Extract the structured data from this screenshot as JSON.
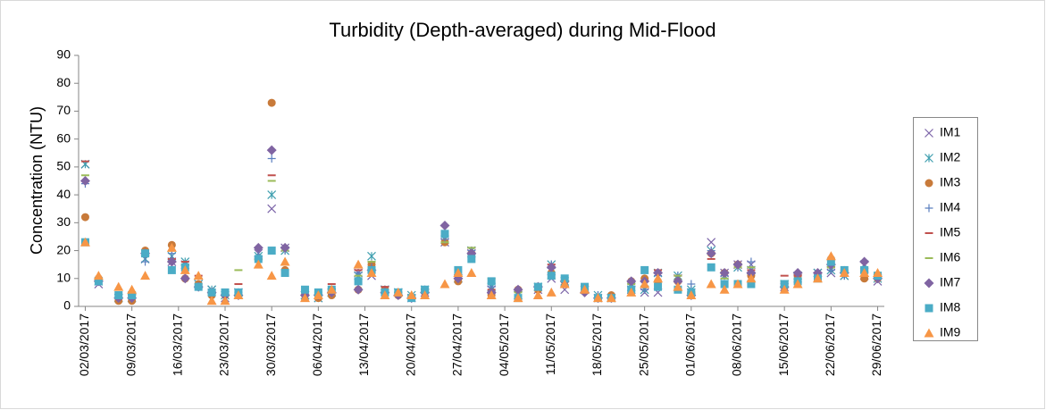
{
  "chart_data": {
    "type": "scatter",
    "title": "Turbidity (Depth-averaged) during Mid-Flood",
    "y_label": "Concentration (NTU)",
    "x": [
      "02/03/2017",
      "04/03/2017",
      "07/03/2017",
      "09/03/2017",
      "11/03/2017",
      "15/03/2017",
      "17/03/2017",
      "19/03/2017",
      "21/03/2017",
      "23/03/2017",
      "25/03/2017",
      "28/03/2017",
      "30/03/2017",
      "01/04/2017",
      "04/04/2017",
      "06/04/2017",
      "08/04/2017",
      "12/04/2017",
      "14/04/2017",
      "16/04/2017",
      "18/04/2017",
      "20/04/2017",
      "22/04/2017",
      "25/04/2017",
      "27/04/2017",
      "29/04/2017",
      "02/05/2017",
      "06/05/2017",
      "09/05/2017",
      "11/05/2017",
      "13/05/2017",
      "16/05/2017",
      "18/05/2017",
      "20/05/2017",
      "23/05/2017",
      "25/05/2017",
      "27/05/2017",
      "30/05/2017",
      "01/06/2017",
      "04/06/2017",
      "06/06/2017",
      "08/06/2017",
      "10/06/2017",
      "15/06/2017",
      "17/06/2017",
      "20/06/2017",
      "22/06/2017",
      "24/06/2017",
      "27/06/2017",
      "29/06/2017"
    ],
    "xlim": [
      "01/03/2017",
      "30/06/2017"
    ],
    "xticks": [
      "02/03/2017",
      "09/03/2017",
      "16/03/2017",
      "23/03/2017",
      "30/03/2017",
      "06/04/2017",
      "13/04/2017",
      "20/04/2017",
      "27/04/2017",
      "04/05/2017",
      "11/05/2017",
      "18/05/2017",
      "25/05/2017",
      "01/06/2017",
      "08/06/2017",
      "15/06/2017",
      "22/06/2017",
      "29/06/2017"
    ],
    "ylim": [
      0,
      90
    ],
    "yticks": [
      0,
      10,
      20,
      30,
      40,
      50,
      60,
      70,
      80,
      90
    ],
    "legend": "right",
    "series": [
      {
        "name": "IM1",
        "color": "#7b64a8",
        "marker": "x",
        "values": [
          51,
          8,
          3,
          3,
          17,
          16,
          15,
          8,
          6,
          3,
          5,
          19,
          35,
          21,
          4,
          3,
          5,
          12,
          11,
          6,
          5,
          3,
          5,
          23,
          10,
          19,
          6,
          4,
          6,
          10,
          6,
          6,
          3,
          3,
          6,
          5,
          5,
          10,
          5,
          23,
          12,
          15,
          15,
          7,
          10,
          12,
          12,
          11,
          11,
          9
        ]
      },
      {
        "name": "IM2",
        "color": "#3f9faf",
        "marker": "asterisk",
        "values": [
          51,
          9,
          3,
          3,
          17,
          18,
          16,
          8,
          6,
          4,
          5,
          18,
          40,
          20,
          4,
          3,
          5,
          11,
          18,
          6,
          5,
          4,
          6,
          24,
          10,
          20,
          7,
          4,
          7,
          15,
          9,
          6,
          4,
          3,
          7,
          6,
          12,
          11,
          6,
          20,
          11,
          14,
          13,
          8,
          11,
          12,
          13,
          11,
          15,
          10
        ]
      },
      {
        "name": "IM3",
        "color": "#c87a3a",
        "marker": "circle",
        "values": [
          32,
          10,
          2,
          2,
          20,
          22,
          10,
          8,
          4,
          4,
          4,
          17,
          73,
          13,
          4,
          3,
          4,
          6,
          15,
          6,
          4,
          3,
          5,
          23,
          9,
          19,
          4,
          6,
          6,
          12,
          9,
          6,
          3,
          4,
          9,
          10,
          9,
          9,
          4,
          19,
          12,
          15,
          11,
          7,
          11,
          11,
          17,
          13,
          10,
          10
        ]
      },
      {
        "name": "IM4",
        "color": "#5b7fbf",
        "marker": "plus",
        "values": [
          44,
          9,
          3,
          3,
          16,
          19,
          15,
          7,
          5,
          4,
          5,
          18,
          53,
          20,
          4,
          4,
          5,
          12,
          14,
          6,
          5,
          3,
          6,
          24,
          10,
          20,
          7,
          4,
          7,
          15,
          9,
          6,
          4,
          3,
          7,
          6,
          11,
          11,
          8,
          20,
          11,
          14,
          16,
          8,
          11,
          12,
          13,
          11,
          12,
          10
        ]
      },
      {
        "name": "IM5",
        "color": "#c0504d",
        "marker": "dash",
        "values": [
          52,
          10,
          3,
          4,
          18,
          17,
          16,
          11,
          6,
          4,
          8,
          17,
          47,
          21,
          4,
          4,
          8,
          13,
          16,
          7,
          5,
          4,
          6,
          25,
          11,
          21,
          6,
          4,
          7,
          15,
          9,
          7,
          4,
          3,
          9,
          7,
          13,
          11,
          5,
          17,
          12,
          15,
          13,
          11,
          11,
          12,
          14,
          12,
          13,
          10
        ]
      },
      {
        "name": "IM6",
        "color": "#9bbb59",
        "marker": "dash",
        "values": [
          47,
          10,
          3,
          4,
          18,
          16,
          15,
          10,
          5,
          4,
          13,
          17,
          45,
          20,
          4,
          5,
          6,
          11,
          16,
          6,
          5,
          4,
          6,
          23,
          10,
          21,
          10,
          5,
          7,
          10,
          9,
          6,
          4,
          3,
          8,
          7,
          12,
          11,
          5,
          19,
          10,
          14,
          14,
          9,
          10,
          12,
          14,
          12,
          14,
          11
        ]
      },
      {
        "name": "IM7",
        "color": "#8064a2",
        "marker": "diamond",
        "values": [
          45,
          9,
          3,
          3,
          19,
          16,
          10,
          7,
          5,
          4,
          4,
          21,
          56,
          21,
          4,
          4,
          5,
          6,
          13,
          5,
          4,
          3,
          5,
          29,
          10,
          19,
          5,
          6,
          7,
          14,
          9,
          5,
          3,
          3,
          9,
          9,
          12,
          9,
          4,
          19,
          12,
          15,
          12,
          7,
          12,
          12,
          15,
          12,
          16,
          10
        ]
      },
      {
        "name": "IM8",
        "color": "#4bacc6",
        "marker": "square",
        "values": [
          23,
          9,
          4,
          4,
          19,
          13,
          14,
          7,
          5,
          5,
          5,
          17,
          20,
          12,
          6,
          5,
          6,
          9,
          13,
          5,
          5,
          3,
          6,
          26,
          13,
          17,
          9,
          3,
          7,
          11,
          10,
          7,
          3,
          3,
          6,
          13,
          7,
          6,
          5,
          14,
          8,
          8,
          8,
          8,
          9,
          10,
          16,
          13,
          13,
          11
        ]
      },
      {
        "name": "IM9",
        "color": "#f79646",
        "marker": "triangle",
        "values": [
          23,
          11,
          7,
          6,
          11,
          21,
          13,
          11,
          2,
          2,
          4,
          15,
          11,
          16,
          3,
          4,
          6,
          15,
          12,
          4,
          5,
          4,
          4,
          8,
          12,
          12,
          4,
          3,
          4,
          5,
          8,
          6,
          3,
          3,
          5,
          8,
          10,
          7,
          4,
          8,
          6,
          8,
          10,
          6,
          8,
          10,
          18,
          12,
          12,
          12
        ]
      }
    ]
  }
}
